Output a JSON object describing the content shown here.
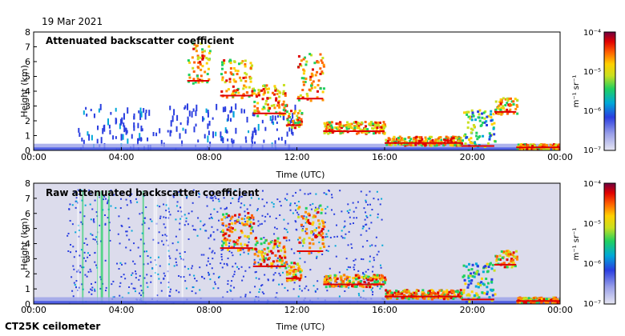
{
  "date": "19 Mar 2021",
  "instrument": "CT25K ceilometer",
  "colorbar": {
    "unit_label": "m⁻¹ sr⁻¹",
    "tick_labels": [
      "10⁻⁴",
      "10⁻⁵",
      "10⁻⁶",
      "10⁻⁷"
    ],
    "scale": "log",
    "range": [
      1e-07,
      0.0001
    ],
    "colors": [
      "#e6e6f2",
      "#9aa0e8",
      "#2a3ee0",
      "#00a8d8",
      "#20d060",
      "#c8e020",
      "#ffd000",
      "#ff6000",
      "#e00000",
      "#700040"
    ]
  },
  "chart_data": [
    {
      "type": "heatmap",
      "title": "Attenuated backscatter coefficient",
      "xlabel": "Time (UTC)",
      "ylabel": "Height (km)",
      "xticks": [
        "00:00",
        "04:00",
        "08:00",
        "12:00",
        "16:00",
        "20:00",
        "00:00"
      ],
      "yticks": [
        "0",
        "1",
        "2",
        "3",
        "4",
        "5",
        "6",
        "7",
        "8"
      ],
      "xlim_hours": [
        0,
        24
      ],
      "ylim_km": [
        0,
        8
      ],
      "cloud_layers": [
        {
          "t0": 7.0,
          "t1": 8.0,
          "h0": 4.6,
          "h1": 7.4,
          "intensity": "high"
        },
        {
          "t0": 8.5,
          "t1": 10.0,
          "h0": 3.6,
          "h1": 6.2,
          "intensity": "high"
        },
        {
          "t0": 10.0,
          "t1": 11.5,
          "h0": 2.4,
          "h1": 4.5,
          "intensity": "high"
        },
        {
          "t0": 11.5,
          "t1": 12.2,
          "h0": 1.6,
          "h1": 2.8,
          "intensity": "high"
        },
        {
          "t0": 12.0,
          "t1": 13.2,
          "h0": 3.4,
          "h1": 6.6,
          "intensity": "high"
        },
        {
          "t0": 13.2,
          "t1": 16.0,
          "h0": 1.2,
          "h1": 2.0,
          "intensity": "high"
        },
        {
          "t0": 16.0,
          "t1": 19.5,
          "h0": 0.4,
          "h1": 1.0,
          "intensity": "high"
        },
        {
          "t0": 19.5,
          "t1": 21.0,
          "h0": 0.2,
          "h1": 2.8,
          "intensity": "medium"
        },
        {
          "t0": 21.0,
          "t1": 22.0,
          "h0": 2.5,
          "h1": 3.6,
          "intensity": "high"
        },
        {
          "t0": 22.0,
          "t1": 24.0,
          "h0": 0.1,
          "h1": 0.5,
          "intensity": "high"
        }
      ]
    },
    {
      "type": "heatmap",
      "title": "Raw attenuated backscatter coefficient",
      "xlabel": "Time (UTC)",
      "ylabel": "Height (km)",
      "xticks": [
        "00:00",
        "04:00",
        "08:00",
        "12:00",
        "16:00",
        "20:00",
        "00:00"
      ],
      "yticks": [
        "0",
        "1",
        "2",
        "3",
        "4",
        "5",
        "6",
        "7",
        "8"
      ],
      "xlim_hours": [
        0,
        24
      ],
      "ylim_km": [
        0,
        8
      ],
      "cloud_layers": [
        {
          "t0": 8.5,
          "t1": 10.0,
          "h0": 3.6,
          "h1": 6.2,
          "intensity": "high"
        },
        {
          "t0": 10.0,
          "t1": 11.5,
          "h0": 2.4,
          "h1": 4.5,
          "intensity": "high"
        },
        {
          "t0": 11.5,
          "t1": 12.2,
          "h0": 1.6,
          "h1": 2.8,
          "intensity": "high"
        },
        {
          "t0": 12.0,
          "t1": 13.2,
          "h0": 3.4,
          "h1": 6.6,
          "intensity": "high"
        },
        {
          "t0": 13.2,
          "t1": 16.0,
          "h0": 1.2,
          "h1": 2.0,
          "intensity": "high"
        },
        {
          "t0": 16.0,
          "t1": 19.5,
          "h0": 0.4,
          "h1": 1.0,
          "intensity": "high"
        },
        {
          "t0": 19.5,
          "t1": 21.0,
          "h0": 0.2,
          "h1": 2.8,
          "intensity": "medium"
        },
        {
          "t0": 21.0,
          "t1": 22.0,
          "h0": 2.5,
          "h1": 3.6,
          "intensity": "high"
        },
        {
          "t0": 22.0,
          "t1": 24.0,
          "h0": 0.1,
          "h1": 0.5,
          "intensity": "high"
        }
      ],
      "noise_band_hours": [
        1.5,
        16.0
      ]
    }
  ]
}
